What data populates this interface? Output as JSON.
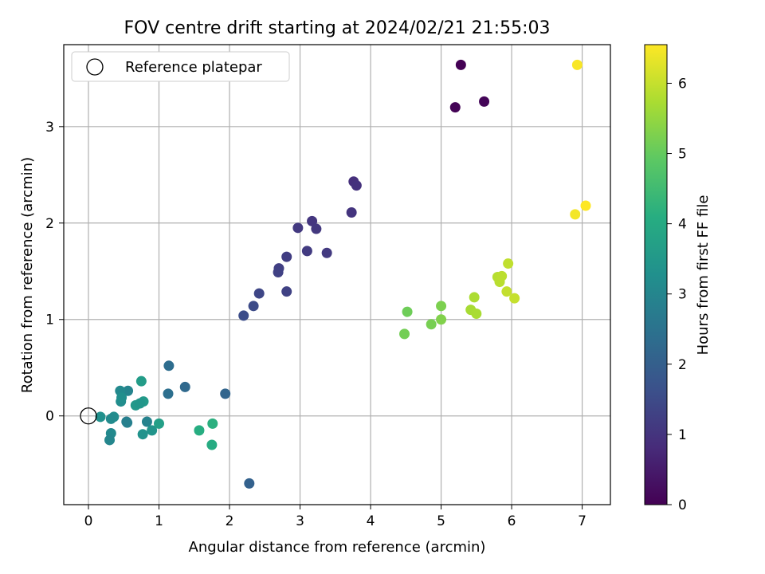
{
  "chart_data": {
    "type": "scatter",
    "title": "FOV centre drift starting at 2024/02/21 21:55:03",
    "xlabel": "Angular distance from reference (arcmin)",
    "ylabel": "Rotation from reference (arcmin)",
    "xlim": [
      -0.35,
      7.4
    ],
    "ylim": [
      -0.92,
      3.85
    ],
    "xticks": [
      0,
      1,
      2,
      3,
      4,
      5,
      6,
      7
    ],
    "yticks": [
      0,
      1,
      2,
      3
    ],
    "grid": true,
    "legend": {
      "placement": "upper-left",
      "label": "Reference platepar"
    },
    "reference_point": {
      "x": 0,
      "y": 0
    },
    "colorbar": {
      "label": "Hours from first FF file",
      "range": [
        0,
        6.55
      ],
      "ticks": [
        0,
        1,
        2,
        3,
        4,
        5,
        6
      ],
      "colormap": "viridis"
    },
    "points": [
      {
        "x": 5.28,
        "y": 3.64,
        "h": 0.0
      },
      {
        "x": 5.2,
        "y": 3.2,
        "h": 0.05
      },
      {
        "x": 5.61,
        "y": 3.26,
        "h": 0.08
      },
      {
        "x": 3.76,
        "y": 2.43,
        "h": 0.9
      },
      {
        "x": 3.8,
        "y": 2.39,
        "h": 0.95
      },
      {
        "x": 3.73,
        "y": 2.11,
        "h": 1.0
      },
      {
        "x": 3.17,
        "y": 2.02,
        "h": 1.05
      },
      {
        "x": 3.23,
        "y": 1.94,
        "h": 1.08
      },
      {
        "x": 2.97,
        "y": 1.95,
        "h": 1.1
      },
      {
        "x": 3.1,
        "y": 1.71,
        "h": 1.15
      },
      {
        "x": 3.38,
        "y": 1.69,
        "h": 1.12
      },
      {
        "x": 2.81,
        "y": 1.65,
        "h": 1.2
      },
      {
        "x": 2.7,
        "y": 1.53,
        "h": 1.25
      },
      {
        "x": 2.69,
        "y": 1.49,
        "h": 1.28
      },
      {
        "x": 2.81,
        "y": 1.29,
        "h": 1.3
      },
      {
        "x": 2.42,
        "y": 1.27,
        "h": 1.4
      },
      {
        "x": 2.34,
        "y": 1.14,
        "h": 1.5
      },
      {
        "x": 2.2,
        "y": 1.04,
        "h": 1.55
      },
      {
        "x": 2.28,
        "y": -0.7,
        "h": 2.05
      },
      {
        "x": 1.94,
        "y": 0.23,
        "h": 2.15
      },
      {
        "x": 1.37,
        "y": 0.3,
        "h": 2.25
      },
      {
        "x": 1.14,
        "y": 0.52,
        "h": 2.35
      },
      {
        "x": 1.13,
        "y": 0.23,
        "h": 2.4
      },
      {
        "x": 0.56,
        "y": 0.26,
        "h": 2.95
      },
      {
        "x": 0.45,
        "y": 0.26,
        "h": 3.1
      },
      {
        "x": 0.46,
        "y": 0.15,
        "h": 3.2
      },
      {
        "x": 0.47,
        "y": 0.19,
        "h": 3.25
      },
      {
        "x": 0.83,
        "y": -0.06,
        "h": 2.9
      },
      {
        "x": 0.54,
        "y": -0.06,
        "h": 2.8
      },
      {
        "x": 0.55,
        "y": -0.07,
        "h": 2.85
      },
      {
        "x": 0.17,
        "y": -0.01,
        "h": 3.3
      },
      {
        "x": 0.36,
        "y": -0.01,
        "h": 3.2
      },
      {
        "x": 0.32,
        "y": -0.03,
        "h": 3.15
      },
      {
        "x": 0.32,
        "y": -0.18,
        "h": 3.1
      },
      {
        "x": 0.3,
        "y": -0.25,
        "h": 3.0
      },
      {
        "x": 0.75,
        "y": 0.36,
        "h": 3.6
      },
      {
        "x": 0.78,
        "y": 0.15,
        "h": 3.55
      },
      {
        "x": 0.67,
        "y": 0.11,
        "h": 3.5
      },
      {
        "x": 0.73,
        "y": 0.13,
        "h": 3.45
      },
      {
        "x": 0.77,
        "y": -0.19,
        "h": 3.35
      },
      {
        "x": 0.9,
        "y": -0.15,
        "h": 3.4
      },
      {
        "x": 1.0,
        "y": -0.08,
        "h": 3.7
      },
      {
        "x": 1.57,
        "y": -0.15,
        "h": 4.1
      },
      {
        "x": 1.76,
        "y": -0.08,
        "h": 4.15
      },
      {
        "x": 1.75,
        "y": -0.3,
        "h": 4.05
      },
      {
        "x": 4.48,
        "y": 0.85,
        "h": 5.15
      },
      {
        "x": 4.52,
        "y": 1.08,
        "h": 5.1
      },
      {
        "x": 4.86,
        "y": 0.95,
        "h": 5.2
      },
      {
        "x": 5.0,
        "y": 1.14,
        "h": 5.25
      },
      {
        "x": 5.0,
        "y": 1.0,
        "h": 5.3
      },
      {
        "x": 5.42,
        "y": 1.1,
        "h": 5.7
      },
      {
        "x": 5.47,
        "y": 1.23,
        "h": 5.75
      },
      {
        "x": 5.5,
        "y": 1.06,
        "h": 5.72
      },
      {
        "x": 5.8,
        "y": 1.44,
        "h": 5.85
      },
      {
        "x": 5.83,
        "y": 1.39,
        "h": 5.88
      },
      {
        "x": 5.86,
        "y": 1.45,
        "h": 5.9
      },
      {
        "x": 5.95,
        "y": 1.58,
        "h": 5.95
      },
      {
        "x": 5.93,
        "y": 1.29,
        "h": 5.98
      },
      {
        "x": 6.04,
        "y": 1.22,
        "h": 6.0
      },
      {
        "x": 6.93,
        "y": 3.64,
        "h": 6.5
      },
      {
        "x": 6.9,
        "y": 2.09,
        "h": 6.45
      },
      {
        "x": 7.05,
        "y": 2.18,
        "h": 6.55
      }
    ]
  }
}
